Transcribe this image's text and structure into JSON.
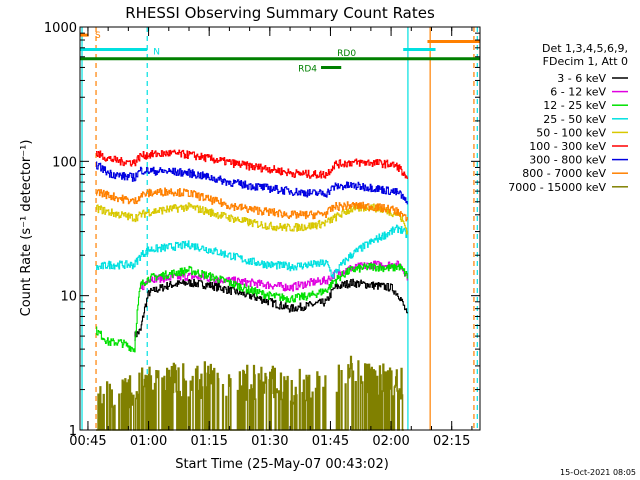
{
  "chart_data": {
    "type": "line",
    "title": "RHESSI Observing Summary Count Rates",
    "xlabel": "Start Time (25-May-07 00:43:02)",
    "ylabel": "Count Rate (s⁻¹ detector⁻¹)",
    "y_scale": "log",
    "ylim": [
      1,
      1000
    ],
    "xlim": [
      "00:43:02",
      "02:22:00"
    ],
    "y_ticks": [
      "1",
      "10",
      "100",
      "1000"
    ],
    "x_ticks": [
      "00:45",
      "01:00",
      "01:15",
      "01:30",
      "01:45",
      "02:00",
      "02:15"
    ],
    "legend_position": "right",
    "legend_header": [
      "Det 1,3,4,5,6,9,",
      "FDecim 1, Att 0"
    ],
    "timestamp": "15-Oct-2021 08:05",
    "series": [
      {
        "name": "3 - 6 keV",
        "color": "#000000",
        "x": [
          "00:56:30",
          "00:58:00",
          "01:00:00",
          "01:05:00",
          "01:10:00",
          "01:15:00",
          "01:20:00",
          "01:25:00",
          "01:30:00",
          "01:35:00",
          "01:40:00",
          "01:44:00",
          "01:46:00",
          "01:50:00",
          "01:55:00",
          "02:00:00",
          "02:02:00",
          "02:04:00"
        ],
        "y": [
          5.0,
          5.5,
          10.5,
          12.0,
          12.5,
          12.0,
          11.0,
          10.0,
          9.0,
          8.0,
          8.5,
          9.0,
          11.5,
          12.5,
          12.0,
          11.5,
          10.0,
          7.0
        ]
      },
      {
        "name": "6 - 12 keV",
        "color": "#e000e0",
        "x": [
          "00:58:00",
          "01:00:00",
          "01:05:00",
          "01:10:00",
          "01:15:00",
          "01:20:00",
          "01:25:00",
          "01:30:00",
          "01:35:00",
          "01:40:00",
          "01:44:00",
          "01:46:00",
          "01:50:00",
          "01:55:00",
          "02:00:00",
          "02:02:00",
          "02:04:00"
        ],
        "y": [
          11.0,
          13.5,
          13.5,
          14.0,
          13.5,
          13.0,
          12.5,
          12.0,
          11.5,
          12.5,
          13.0,
          14.5,
          16.0,
          17.0,
          17.0,
          17.0,
          14.0
        ]
      },
      {
        "name": "12 - 25 keV",
        "color": "#00e000",
        "x": [
          "00:47:00",
          "00:50:00",
          "00:53:00",
          "00:56:30",
          "00:58:00",
          "01:00:00",
          "01:05:00",
          "01:10:00",
          "01:15:00",
          "01:20:00",
          "01:25:00",
          "01:30:00",
          "01:35:00",
          "01:40:00",
          "01:44:00",
          "01:46:00",
          "01:50:00",
          "01:55:00",
          "02:00:00",
          "02:02:00",
          "02:04:00"
        ],
        "y": [
          5.5,
          4.5,
          4.5,
          4.0,
          12.0,
          13.5,
          14.5,
          15.5,
          14.0,
          12.5,
          11.0,
          10.0,
          9.5,
          10.0,
          11.0,
          13.0,
          15.5,
          16.5,
          16.0,
          16.5,
          14.0
        ]
      },
      {
        "name": "25 - 50 keV",
        "color": "#00e0e0",
        "x": [
          "00:47:00",
          "00:50:00",
          "00:56:30",
          "00:58:00",
          "01:00:00",
          "01:05:00",
          "01:10:00",
          "01:15:00",
          "01:20:00",
          "01:25:00",
          "01:30:00",
          "01:35:00",
          "01:40:00",
          "01:44:00",
          "01:45:30",
          "01:47:00",
          "01:50:00",
          "01:55:00",
          "02:00:00",
          "02:02:00",
          "02:04:00"
        ],
        "y": [
          16.0,
          17.0,
          17.0,
          20.0,
          22.0,
          23.0,
          24.0,
          22.0,
          20.0,
          18.0,
          17.0,
          16.5,
          17.0,
          17.5,
          14.0,
          16.0,
          20.0,
          25.0,
          30.0,
          32.0,
          28.0
        ]
      },
      {
        "name": "50 - 100 keV",
        "color": "#d8c800",
        "x": [
          "00:47:00",
          "00:50:00",
          "00:53:00",
          "00:56:30",
          "00:58:00",
          "01:00:00",
          "01:05:00",
          "01:10:00",
          "01:15:00",
          "01:20:00",
          "01:25:00",
          "01:30:00",
          "01:35:00",
          "01:40:00",
          "01:44:00",
          "01:46:00",
          "01:50:00",
          "01:55:00",
          "02:00:00",
          "02:02:00",
          "02:04:00"
        ],
        "y": [
          45.0,
          42.0,
          40.0,
          38.0,
          40.0,
          42.0,
          44.0,
          46.0,
          42.0,
          38.0,
          35.0,
          33.0,
          32.0,
          33.0,
          35.0,
          38.0,
          44.0,
          46.0,
          42.0,
          40.0,
          30.0
        ]
      },
      {
        "name": "100 - 300 keV",
        "color": "#ff0000",
        "x": [
          "00:47:00",
          "00:50:00",
          "00:53:00",
          "00:56:30",
          "00:58:00",
          "01:00:00",
          "01:05:00",
          "01:10:00",
          "01:15:00",
          "01:20:00",
          "01:25:00",
          "01:30:00",
          "01:35:00",
          "01:40:00",
          "01:44:00",
          "01:46:00",
          "01:50:00",
          "01:55:00",
          "02:00:00",
          "02:02:00",
          "02:04:00"
        ],
        "y": [
          115.0,
          105.0,
          100.0,
          98.0,
          110.0,
          112.0,
          115.0,
          112.0,
          105.0,
          98.0,
          92.0,
          88.0,
          82.0,
          80.0,
          80.0,
          95.0,
          98.0,
          98.0,
          95.0,
          90.0,
          70.0
        ]
      },
      {
        "name": "300 - 800 keV",
        "color": "#0000e0",
        "x": [
          "00:47:00",
          "00:50:00",
          "00:53:00",
          "00:56:30",
          "00:58:00",
          "01:00:00",
          "01:05:00",
          "01:10:00",
          "01:15:00",
          "01:20:00",
          "01:25:00",
          "01:30:00",
          "01:35:00",
          "01:40:00",
          "01:44:00",
          "01:46:00",
          "01:50:00",
          "01:55:00",
          "02:00:00",
          "02:02:00",
          "02:04:00"
        ],
        "y": [
          95.0,
          82.0,
          78.0,
          76.0,
          86.0,
          85.0,
          84.0,
          82.0,
          76.0,
          70.0,
          66.0,
          63.0,
          60.0,
          58.0,
          58.0,
          65.0,
          66.0,
          64.0,
          60.0,
          58.0,
          48.0
        ]
      },
      {
        "name": "800 - 7000 keV",
        "color": "#ff8000",
        "x": [
          "00:47:00",
          "00:50:00",
          "00:53:00",
          "00:56:30",
          "00:58:00",
          "01:00:00",
          "01:05:00",
          "01:10:00",
          "01:15:00",
          "01:20:00",
          "01:25:00",
          "01:30:00",
          "01:35:00",
          "01:40:00",
          "01:44:00",
          "01:46:00",
          "01:50:00",
          "01:55:00",
          "02:00:00",
          "02:02:00",
          "02:04:00"
        ],
        "y": [
          60.0,
          56.0,
          53.0,
          50.0,
          56.0,
          58.0,
          60.0,
          58.0,
          52.0,
          47.0,
          44.0,
          42.0,
          40.0,
          40.0,
          41.0,
          46.0,
          47.0,
          46.0,
          44.0,
          42.0,
          36.0
        ]
      },
      {
        "name": "7000 - 15000 keV",
        "color": "#808000",
        "x": [
          "00:47:00",
          "00:50:00",
          "00:55:00",
          "00:59:00",
          "01:00:00",
          "01:05:00",
          "01:10:00",
          "01:15:00",
          "01:20:00",
          "01:25:00",
          "01:30:00",
          "01:35:00",
          "01:40:00",
          "01:45:00",
          "01:48:00",
          "01:50:00",
          "01:52:00",
          "01:55:00",
          "02:00:00",
          "02:03:00"
        ],
        "y": [
          1.8,
          1.9,
          1.9,
          2.8,
          2.5,
          2.6,
          2.4,
          2.5,
          2.3,
          2.4,
          2.3,
          2.2,
          2.3,
          2.4,
          2.8,
          2.9,
          2.8,
          2.5,
          2.4,
          2.2
        ]
      }
    ],
    "annotations": [
      {
        "label": "S",
        "color": "#ff8000",
        "x_start": "00:43:02",
        "x_end": "00:45:10",
        "y": 870
      },
      {
        "label": "N",
        "color": "#00e0e0",
        "x_start": "00:43:02",
        "x_end": "00:59:40",
        "y": 680
      },
      {
        "label": "RD0",
        "color": "#008000",
        "x_start": "00:43:02",
        "x_end": "02:22:00",
        "y": 580
      },
      {
        "label": "RD4",
        "color": "#008000",
        "x_start": "01:42:40",
        "x_end": "01:47:40",
        "y": 500
      },
      {
        "label": "",
        "color": "#00e0e0",
        "x_start": "02:03:00",
        "x_end": "02:11:00",
        "y": 680
      },
      {
        "label": "",
        "color": "#ff8000",
        "x_start": "02:09:00",
        "x_end": "02:22:00",
        "y": 780
      }
    ],
    "markers": [
      {
        "x": "00:43:32",
        "color": "#00e0e0",
        "style": "solid"
      },
      {
        "x": "00:47:00",
        "color": "#ff8000",
        "style": "dashed"
      },
      {
        "x": "00:59:40",
        "color": "#00e0e0",
        "style": "dashed"
      },
      {
        "x": "02:04:10",
        "color": "#00e0e0",
        "style": "solid"
      },
      {
        "x": "02:09:40",
        "color": "#ff8000",
        "style": "solid"
      },
      {
        "x": "02:20:30",
        "color": "#ff8000",
        "style": "dashed"
      },
      {
        "x": "02:21:20",
        "color": "#00e0e0",
        "style": "dashed"
      }
    ]
  }
}
